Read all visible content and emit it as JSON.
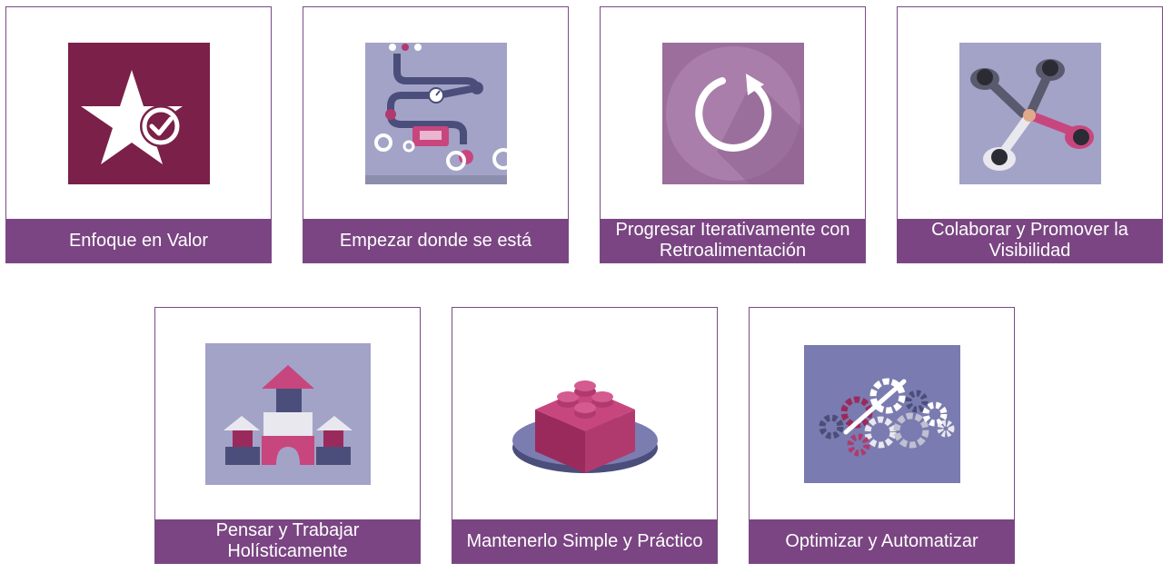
{
  "cards": [
    {
      "label": "Enfoque en Valor",
      "icon": "star-check-icon"
    },
    {
      "label": "Empezar donde se está",
      "icon": "pipeline-icon"
    },
    {
      "label": "Progresar Iterativamente con Retroalimentación",
      "icon": "refresh-cycle-icon"
    },
    {
      "label": "Colaborar y Promover la Visibilidad",
      "icon": "handshake-team-icon"
    },
    {
      "label": "Pensar y Trabajar Holísticamente",
      "icon": "building-blocks-icon"
    },
    {
      "label": "Mantenerlo Simple y Práctico",
      "icon": "lego-brick-icon"
    },
    {
      "label": "Optimizar y Automatizar",
      "icon": "gears-icon"
    }
  ],
  "colors": {
    "caption_bg": "#7a4582",
    "border": "#7a4a86",
    "wine": "#7b2048",
    "lavender": "#a3a3c8",
    "mauve": "#9b6e9c"
  }
}
